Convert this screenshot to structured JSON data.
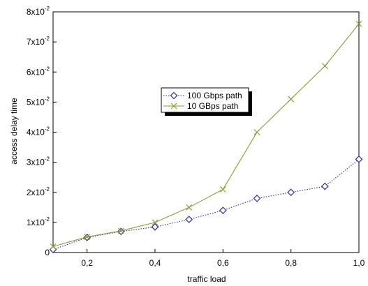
{
  "chart_data": {
    "type": "line",
    "xlabel": "traffic load",
    "ylabel": "access delay time",
    "xlim": [
      0.1,
      1.0
    ],
    "ylim": [
      0,
      0.08
    ],
    "grid": false,
    "legend_position": "center",
    "x_ticks": [
      {
        "value": 0.2,
        "label": "0,2"
      },
      {
        "value": 0.4,
        "label": "0,4"
      },
      {
        "value": 0.6,
        "label": "0,6"
      },
      {
        "value": 0.8,
        "label": "0,8"
      },
      {
        "value": 1.0,
        "label": "1,0"
      }
    ],
    "y_ticks": [
      {
        "value": 0,
        "mantissa": "0",
        "exponent": ""
      },
      {
        "value": 0.01,
        "mantissa": "1x10",
        "exponent": "-2"
      },
      {
        "value": 0.02,
        "mantissa": "2x10",
        "exponent": "-2"
      },
      {
        "value": 0.03,
        "mantissa": "3x10",
        "exponent": "-2"
      },
      {
        "value": 0.04,
        "mantissa": "4x10",
        "exponent": "-2"
      },
      {
        "value": 0.05,
        "mantissa": "5x10",
        "exponent": "-2"
      },
      {
        "value": 0.06,
        "mantissa": "6x10",
        "exponent": "-2"
      },
      {
        "value": 0.07,
        "mantissa": "7x10",
        "exponent": "-2"
      },
      {
        "value": 0.08,
        "mantissa": "8x10",
        "exponent": "-2"
      }
    ],
    "x": [
      0.1,
      0.2,
      0.3,
      0.4,
      0.5,
      0.6,
      0.7,
      0.8,
      0.9,
      1.0
    ],
    "series": [
      {
        "name": "100 Gbps path",
        "color": "#2b2b9a",
        "marker": "diamond",
        "line_style": "dotted",
        "values": [
          0.001,
          0.005,
          0.007,
          0.0085,
          0.011,
          0.014,
          0.018,
          0.02,
          0.022,
          0.031
        ]
      },
      {
        "name": "10 GBps path",
        "color": "#8a9a3a",
        "marker": "x",
        "line_style": "solid",
        "values": [
          0.002,
          0.0052,
          0.0072,
          0.01,
          0.015,
          0.021,
          0.04,
          0.051,
          0.062,
          0.076
        ]
      }
    ]
  }
}
